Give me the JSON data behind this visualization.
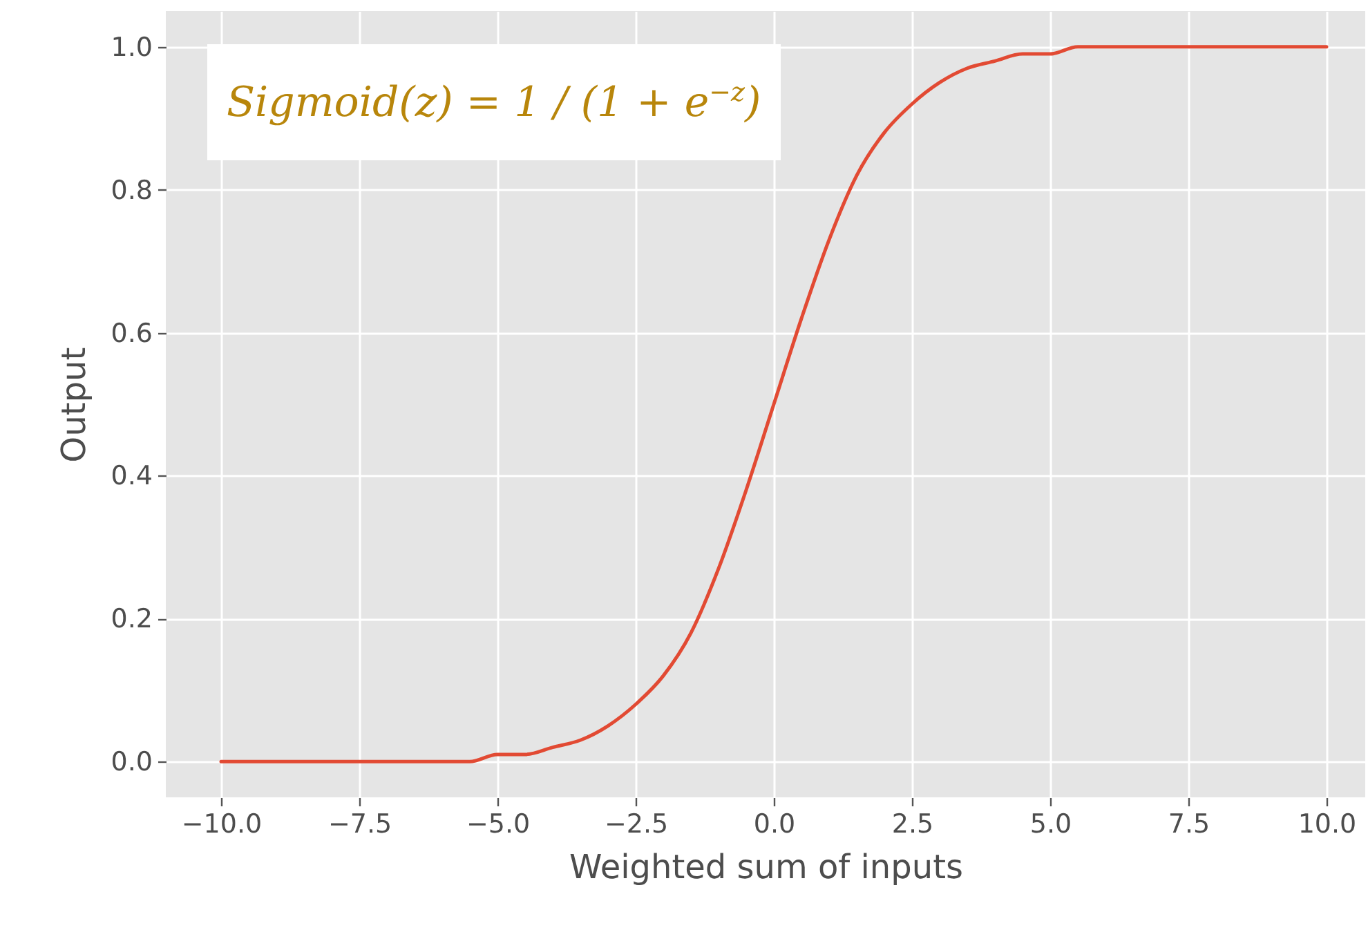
{
  "chart_data": {
    "type": "line",
    "xlabel": "Weighted sum of inputs",
    "ylabel": "Output",
    "annotations": [
      "Sigmoid(z) = 1 / (1 + e$^{−z}$)"
    ],
    "x": [
      -10,
      -9.5,
      -9,
      -8.5,
      -8,
      -7.5,
      -7,
      -6.5,
      -6,
      -5.5,
      -5,
      -4.5,
      -4,
      -3.5,
      -3,
      -2.5,
      -2,
      -1.5,
      -1,
      -0.5,
      0,
      0.5,
      1,
      1.5,
      2,
      2.5,
      3,
      3.5,
      4,
      4.5,
      5,
      5.5,
      6,
      6.5,
      7,
      7.5,
      8,
      8.5,
      9,
      9.5,
      10
    ],
    "series": [
      {
        "color": "#e24a33",
        "values": [
          0.0,
          0.0,
          0.0,
          0.0,
          0.0,
          0.0,
          0.0,
          0.0,
          0.0,
          0.0,
          0.01,
          0.01,
          0.02,
          0.03,
          0.05,
          0.08,
          0.12,
          0.18,
          0.27,
          0.38,
          0.5,
          0.62,
          0.73,
          0.82,
          0.88,
          0.92,
          0.95,
          0.97,
          0.98,
          0.99,
          0.99,
          1.0,
          1.0,
          1.0,
          1.0,
          1.0,
          1.0,
          1.0,
          1.0,
          1.0,
          1.0
        ]
      }
    ],
    "xlim": [
      -11,
      10.7
    ],
    "ylim": [
      -0.05,
      1.05
    ],
    "xticks": [
      {
        "value": -10,
        "label": "−10.0"
      },
      {
        "value": -7.5,
        "label": "−7.5"
      },
      {
        "value": -5,
        "label": "−5.0"
      },
      {
        "value": -2.5,
        "label": "−2.5"
      },
      {
        "value": 0,
        "label": "0.0"
      },
      {
        "value": 2.5,
        "label": "2.5"
      },
      {
        "value": 5,
        "label": "5.0"
      },
      {
        "value": 7.5,
        "label": "7.5"
      },
      {
        "value": 10,
        "label": "10.0"
      }
    ],
    "yticks": [
      {
        "value": 0,
        "label": "0.0"
      },
      {
        "value": 0.2,
        "label": "0.2"
      },
      {
        "value": 0.4,
        "label": "0.4"
      },
      {
        "value": 0.6,
        "label": "0.6"
      },
      {
        "value": 0.8,
        "label": "0.8"
      },
      {
        "value": 1,
        "label": "1.0"
      }
    ],
    "grid": true,
    "marker": "none",
    "line_style": "solid"
  }
}
